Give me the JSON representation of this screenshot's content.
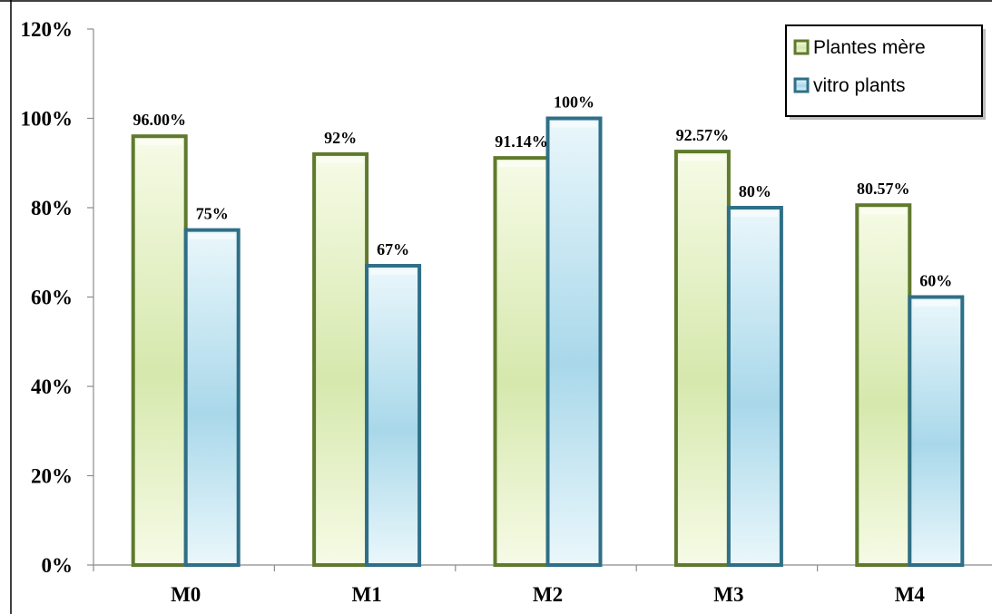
{
  "chart_data": {
    "type": "bar",
    "categories": [
      "M0",
      "M1",
      "M2",
      "M3",
      "M4"
    ],
    "series": [
      {
        "name": "Plantes mère",
        "values": [
          96.0,
          92.0,
          91.14,
          92.57,
          80.57
        ],
        "labels": [
          "96.00%",
          "92%",
          "91.14%",
          "92.57%",
          "80.57%"
        ],
        "fill_top": "#f6fbe6",
        "fill_mid": "#d6e8ad",
        "border": "#5f7a2e"
      },
      {
        "name": "vitro plants",
        "values": [
          75,
          67,
          100,
          80,
          60
        ],
        "labels": [
          "75%",
          "67%",
          "100%",
          "80%",
          "60%"
        ],
        "fill_top": "#eaf7fb",
        "fill_mid": "#a9d8ea",
        "border": "#2f6f87"
      }
    ],
    "yticks": [
      "0%",
      "20%",
      "40%",
      "60%",
      "80%",
      "100%",
      "120%"
    ],
    "ylim": [
      0,
      120
    ],
    "grid": false,
    "legend_position": "top-right",
    "title": "",
    "xlabel": "",
    "ylabel": ""
  }
}
